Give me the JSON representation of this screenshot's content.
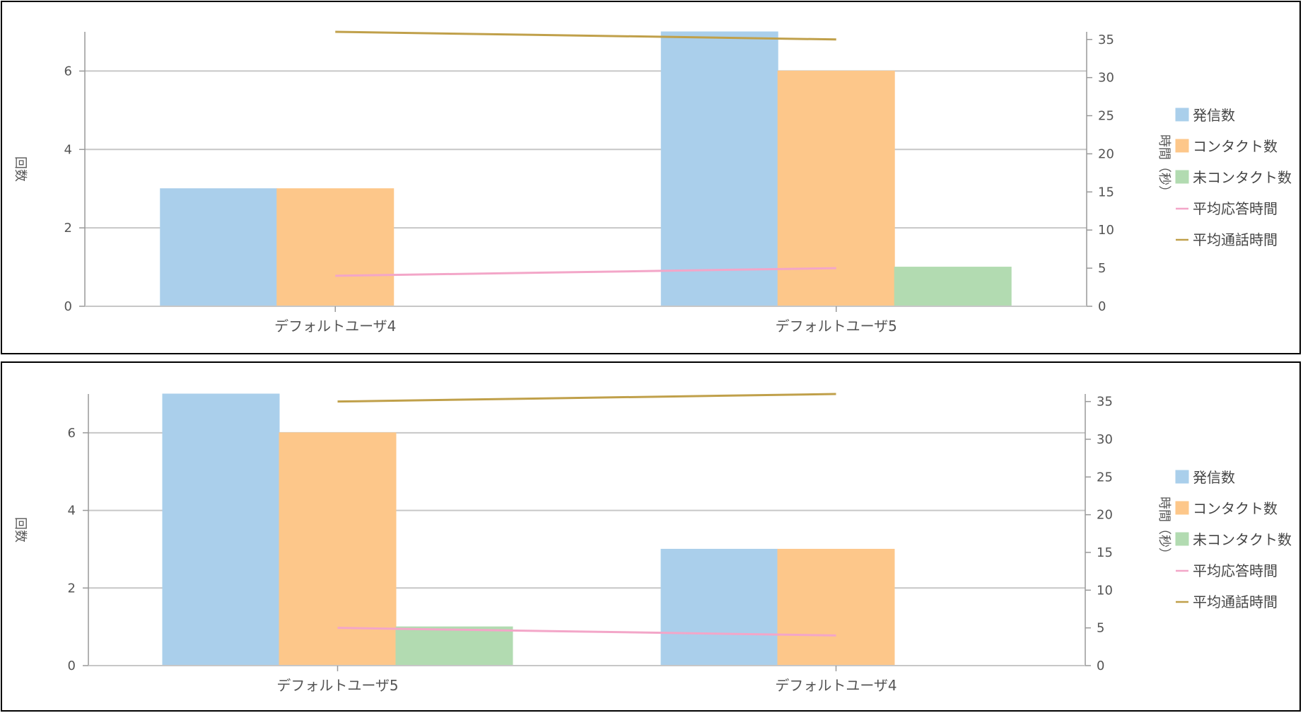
{
  "colors": {
    "発信数": "#aacfeb",
    "コンタクト数": "#fdc78a",
    "未コンタクト数": "#b2dbb1",
    "平均応答時間": "#f3a6c8",
    "平均通話時間": "#c0a04a",
    "grid": "#c7c7c7",
    "axis": "#999999"
  },
  "legend": [
    "発信数",
    "コンタクト数",
    "未コンタクト数",
    "平均応答時間",
    "平均通話時間"
  ],
  "chart_data": [
    {
      "type": "bar",
      "categories": [
        "デフォルトユーザ4",
        "デフォルトユーザ5"
      ],
      "ylabel": "回数",
      "y2label": "時間（秒）",
      "ylim": [
        0,
        7
      ],
      "y2lim": [
        0,
        36
      ],
      "yticks": [
        0,
        2,
        4,
        6
      ],
      "y2ticks": [
        0,
        5,
        10,
        15,
        20,
        25,
        30,
        35
      ],
      "legend_position": "right",
      "grid": true,
      "series": [
        {
          "name": "発信数",
          "type": "bar",
          "axis": "left",
          "values": [
            3,
            7
          ]
        },
        {
          "name": "コンタクト数",
          "type": "bar",
          "axis": "left",
          "values": [
            3,
            6
          ]
        },
        {
          "name": "未コンタクト数",
          "type": "bar",
          "axis": "left",
          "values": [
            0,
            1
          ]
        },
        {
          "name": "平均応答時間",
          "type": "line",
          "axis": "right",
          "values": [
            4,
            5
          ]
        },
        {
          "name": "平均通話時間",
          "type": "line",
          "axis": "right",
          "values": [
            36,
            35
          ]
        }
      ]
    },
    {
      "type": "bar",
      "categories": [
        "デフォルトユーザ5",
        "デフォルトユーザ4"
      ],
      "ylabel": "回数",
      "y2label": "時間（秒）",
      "ylim": [
        0,
        7
      ],
      "y2lim": [
        0,
        36
      ],
      "yticks": [
        0,
        2,
        4,
        6
      ],
      "y2ticks": [
        0,
        5,
        10,
        15,
        20,
        25,
        30,
        35
      ],
      "legend_position": "right",
      "grid": true,
      "series": [
        {
          "name": "発信数",
          "type": "bar",
          "axis": "left",
          "values": [
            7,
            3
          ]
        },
        {
          "name": "コンタクト数",
          "type": "bar",
          "axis": "left",
          "values": [
            6,
            3
          ]
        },
        {
          "name": "未コンタクト数",
          "type": "bar",
          "axis": "left",
          "values": [
            1,
            0
          ]
        },
        {
          "name": "平均応答時間",
          "type": "line",
          "axis": "right",
          "values": [
            5,
            4
          ]
        },
        {
          "name": "平均通話時間",
          "type": "line",
          "axis": "right",
          "values": [
            35,
            36
          ]
        }
      ]
    }
  ]
}
